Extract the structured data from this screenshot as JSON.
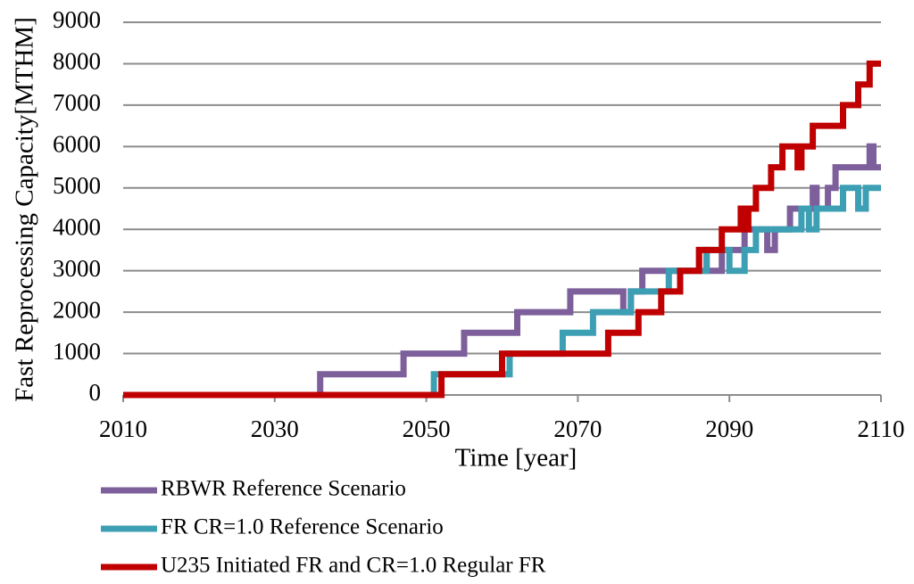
{
  "chart_data": {
    "type": "line",
    "xlabel": "Time [year]",
    "ylabel": "Fast Reprocessing Capacity[MTHM]",
    "xlim": [
      2010,
      2110
    ],
    "xticks": [
      2010,
      2030,
      2050,
      2070,
      2090,
      2110
    ],
    "ylim": [
      0,
      9000
    ],
    "yticks": [
      0,
      1000,
      2000,
      3000,
      4000,
      5000,
      6000,
      7000,
      8000,
      9000
    ],
    "grid": true,
    "legend": "bottom-left",
    "series": [
      {
        "name": "RBWR Reference Scenario",
        "color": "#7d5f9b",
        "x": [
          2010,
          2036,
          2036,
          2047,
          2047,
          2055,
          2055,
          2062,
          2062,
          2069,
          2069,
          2076,
          2076,
          2077,
          2077,
          2078.5,
          2078.5,
          2086,
          2086,
          2087,
          2087,
          2089,
          2089,
          2092,
          2092,
          2095,
          2095,
          2096,
          2096,
          2098,
          2098,
          2101,
          2101,
          2101.5,
          2101.5,
          2103,
          2103,
          2104,
          2104,
          2108.5,
          2108.5,
          2109,
          2109,
          2110
        ],
        "values": [
          0,
          0,
          500,
          500,
          1000,
          1000,
          1500,
          1500,
          2000,
          2000,
          2500,
          2500,
          2000,
          2000,
          2500,
          2500,
          3000,
          3000,
          3500,
          3500,
          3000,
          3000,
          3500,
          3500,
          4000,
          4000,
          3500,
          3500,
          4000,
          4000,
          4500,
          4500,
          5000,
          5000,
          4500,
          4500,
          5000,
          5000,
          5500,
          5500,
          6000,
          6000,
          5500,
          5500
        ]
      },
      {
        "name": "FR CR=1.0 Reference Scenario",
        "color": "#3d9fb3",
        "x": [
          2010,
          2051,
          2051,
          2061,
          2061,
          2068,
          2068,
          2072,
          2072,
          2077,
          2077,
          2082,
          2082,
          2087,
          2087,
          2090,
          2090,
          2092,
          2092,
          2093.5,
          2093.5,
          2099.5,
          2099.5,
          2100.5,
          2100.5,
          2101.5,
          2101.5,
          2105,
          2105,
          2107,
          2107,
          2108,
          2108,
          2110
        ],
        "values": [
          0,
          0,
          500,
          500,
          1000,
          1000,
          1500,
          1500,
          2000,
          2000,
          2500,
          2500,
          3000,
          3000,
          3500,
          3500,
          3000,
          3000,
          3500,
          3500,
          4000,
          4000,
          4500,
          4500,
          4000,
          4000,
          4500,
          4500,
          5000,
          5000,
          4500,
          4500,
          5000,
          5000
        ]
      },
      {
        "name": "U235 Initiated FR and CR=1.0 Regular FR",
        "color": "#c00000",
        "x": [
          2010,
          2052,
          2052,
          2060,
          2060,
          2074,
          2074,
          2078,
          2078,
          2081,
          2081,
          2083.5,
          2083.5,
          2086,
          2086,
          2089,
          2089,
          2091.5,
          2091.5,
          2092,
          2092,
          2092.5,
          2092.5,
          2093.5,
          2093.5,
          2095.5,
          2095.5,
          2097,
          2097,
          2099,
          2099,
          2099.5,
          2099.5,
          2101,
          2101,
          2105,
          2105,
          2107,
          2107,
          2108.5,
          2108.5,
          2110
        ],
        "values": [
          0,
          0,
          500,
          500,
          1000,
          1000,
          1500,
          1500,
          2000,
          2000,
          2500,
          2500,
          3000,
          3000,
          3500,
          3500,
          4000,
          4000,
          4500,
          4500,
          4000,
          4000,
          4500,
          4500,
          5000,
          5000,
          5500,
          5500,
          6000,
          6000,
          5500,
          5500,
          6000,
          6000,
          6500,
          6500,
          7000,
          7000,
          7500,
          7500,
          8000,
          8000
        ]
      }
    ]
  }
}
